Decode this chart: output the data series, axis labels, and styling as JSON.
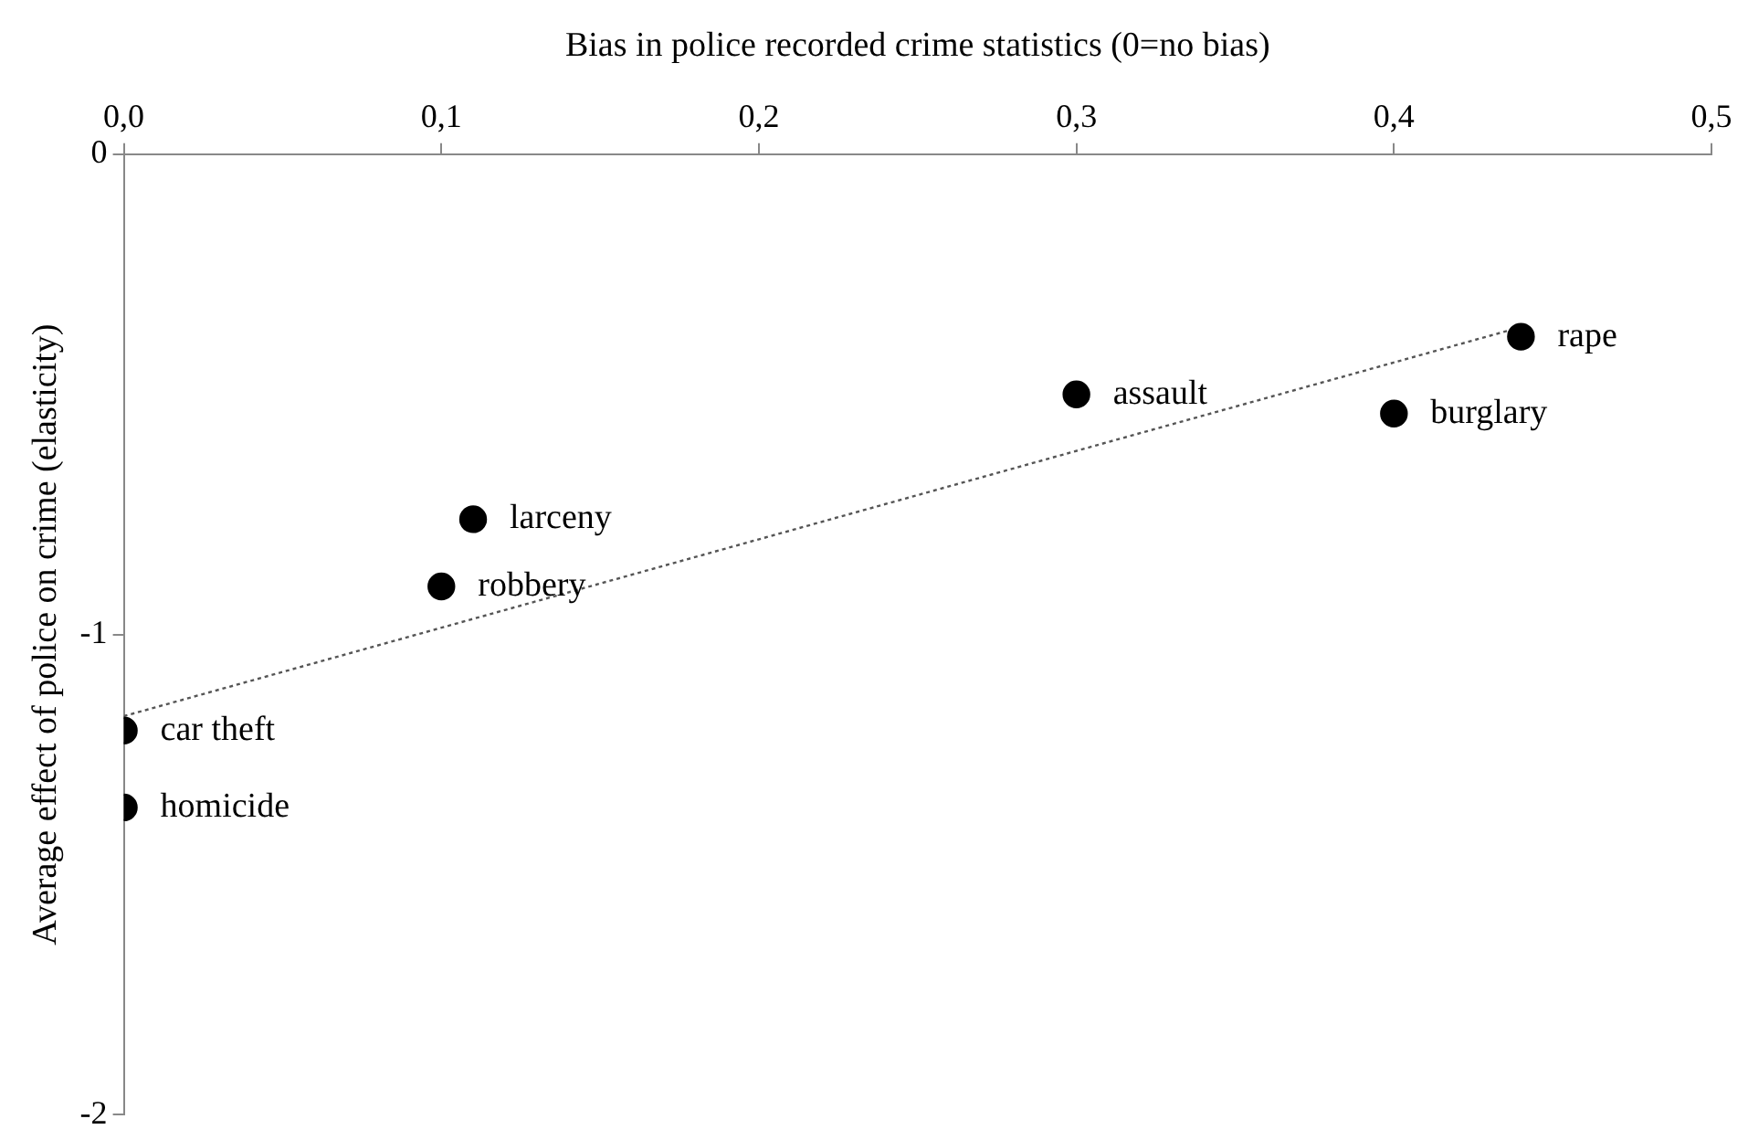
{
  "chart_data": {
    "type": "scatter",
    "xlabel": "Bias in police recorded crime statistics (0=no bias)",
    "ylabel": "Average effect of police on crime (elasticity)",
    "xlim": [
      0,
      0.5
    ],
    "xticks": [
      {
        "value": 0,
        "label": "0,0"
      },
      {
        "value": 0.1,
        "label": "0,1"
      },
      {
        "value": 0.2,
        "label": "0,2"
      },
      {
        "value": 0.3,
        "label": "0,3"
      },
      {
        "value": 0.4,
        "label": "0,4"
      },
      {
        "value": 0.5,
        "label": "0,5"
      }
    ],
    "ylim": [
      -2,
      0
    ],
    "yticks": [
      -2,
      -1,
      0
    ],
    "grid": false,
    "legend": false,
    "series": [
      {
        "marker": "circle",
        "color": "#000000",
        "x": [
          0.44,
          0.3,
          0.4,
          0.11,
          0.1,
          0,
          0
        ],
        "values": [
          -0.38,
          -0.5,
          -0.54,
          -0.76,
          -0.9,
          -1.2,
          -1.36
        ]
      },
      {
        "type": "line",
        "color": "#555555",
        "line_style": "dotted",
        "x": [
          0,
          0.44
        ],
        "values": [
          -1.17,
          -0.36
        ]
      }
    ],
    "annotations": [
      {
        "text": "rape",
        "x": 0.44,
        "y": -0.38
      },
      {
        "text": "assault",
        "x": 0.3,
        "y": -0.5
      },
      {
        "text": "burglary",
        "x": 0.4,
        "y": -0.54
      },
      {
        "text": "larceny",
        "x": 0.11,
        "y": -0.76
      },
      {
        "text": "robbery",
        "x": 0.1,
        "y": -0.9
      },
      {
        "text": "car theft",
        "x": 0,
        "y": -1.2
      },
      {
        "text": "homicide",
        "x": 0,
        "y": -1.36
      }
    ]
  }
}
